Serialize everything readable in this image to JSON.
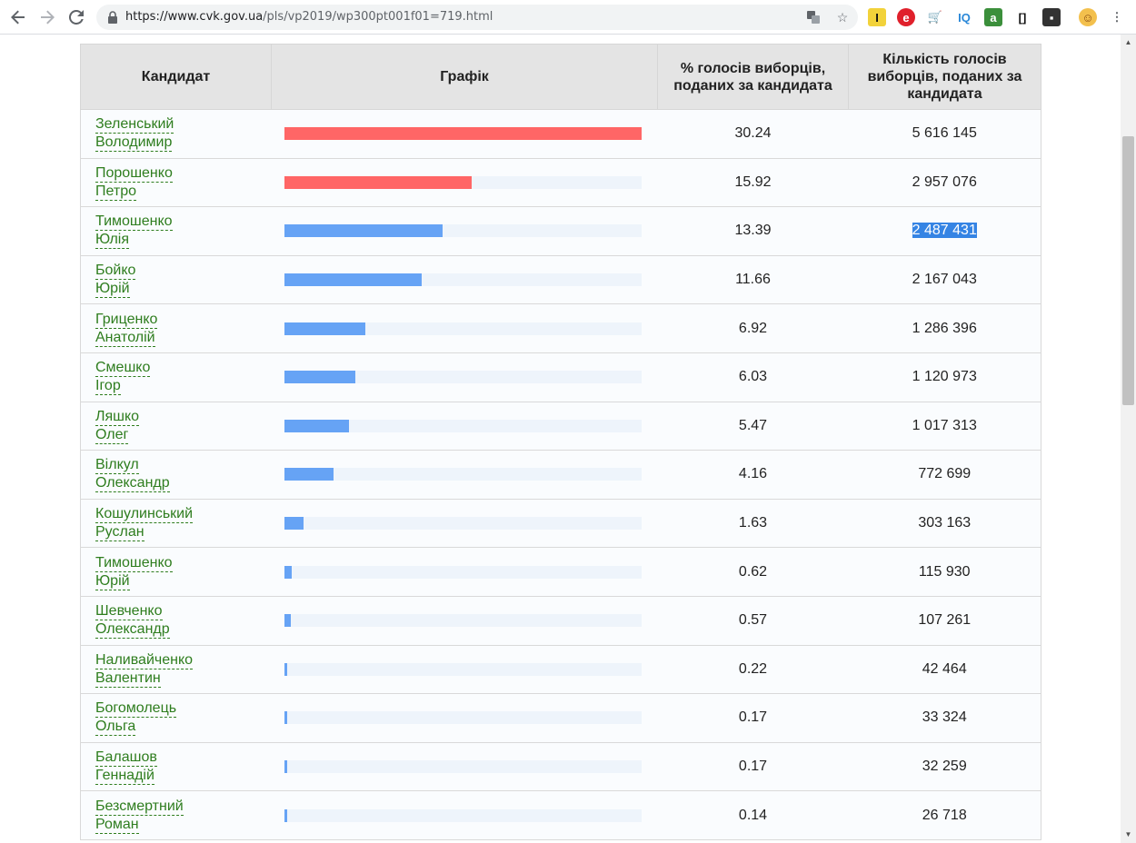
{
  "browser": {
    "url_domain": "https://www.cvk.gov.ua",
    "url_path": "/pls/vp2019/wp300pt001f01=719.html"
  },
  "table": {
    "headers": {
      "candidate": "Кандидат",
      "chart": "Графік",
      "percent": "% голосів виборців, поданих за кандидата",
      "votes": "Кількість голосів виборців, поданих за кандидата"
    },
    "rows": [
      {
        "surname": "Зеленський",
        "first_name": "Володимир",
        "percent": "30.24",
        "votes": "5 616 145",
        "bar_color": "#ff6666",
        "share": 30.24
      },
      {
        "surname": "Порошенко",
        "first_name": "Петро",
        "percent": "15.92",
        "votes": "2 957 076",
        "bar_color": "#ff6666",
        "share": 15.92
      },
      {
        "surname": "Тимошенко",
        "first_name": "Юлія",
        "percent": "13.39",
        "votes": "2 487 431",
        "bar_color": "#66a3f5",
        "share": 13.39,
        "votes_selected": true
      },
      {
        "surname": "Бойко",
        "first_name": "Юрій",
        "percent": "11.66",
        "votes": "2 167 043",
        "bar_color": "#66a3f5",
        "share": 11.66
      },
      {
        "surname": "Гриценко",
        "first_name": "Анатолій",
        "percent": "6.92",
        "votes": "1 286 396",
        "bar_color": "#66a3f5",
        "share": 6.92
      },
      {
        "surname": "Смешко",
        "first_name": "Ігор",
        "percent": "6.03",
        "votes": "1 120 973",
        "bar_color": "#66a3f5",
        "share": 6.03
      },
      {
        "surname": "Ляшко",
        "first_name": "Олег",
        "percent": "5.47",
        "votes": "1 017 313",
        "bar_color": "#66a3f5",
        "share": 5.47
      },
      {
        "surname": "Вілкул",
        "first_name": "Олександр",
        "percent": "4.16",
        "votes": "772 699",
        "bar_color": "#66a3f5",
        "share": 4.16
      },
      {
        "surname": "Кошулинський",
        "first_name": "Руслан",
        "percent": "1.63",
        "votes": "303 163",
        "bar_color": "#66a3f5",
        "share": 1.63
      },
      {
        "surname": "Тимошенко",
        "first_name": "Юрій",
        "percent": "0.62",
        "votes": "115 930",
        "bar_color": "#66a3f5",
        "share": 0.62
      },
      {
        "surname": "Шевченко",
        "first_name": "Олександр",
        "percent": "0.57",
        "votes": "107 261",
        "bar_color": "#66a3f5",
        "share": 0.57
      },
      {
        "surname": "Наливайченко",
        "first_name": "Валентин",
        "percent": "0.22",
        "votes": "42 464",
        "bar_color": "#66a3f5",
        "share": 0.22
      },
      {
        "surname": "Богомолець",
        "first_name": "Ольга",
        "percent": "0.17",
        "votes": "33 324",
        "bar_color": "#66a3f5",
        "share": 0.17
      },
      {
        "surname": "Балашов",
        "first_name": "Геннадій",
        "percent": "0.17",
        "votes": "32 259",
        "bar_color": "#66a3f5",
        "share": 0.17
      },
      {
        "surname": "Безсмертний",
        "first_name": "Роман",
        "percent": "0.14",
        "votes": "26 718",
        "bar_color": "#66a3f5",
        "share": 0.14
      }
    ]
  }
}
